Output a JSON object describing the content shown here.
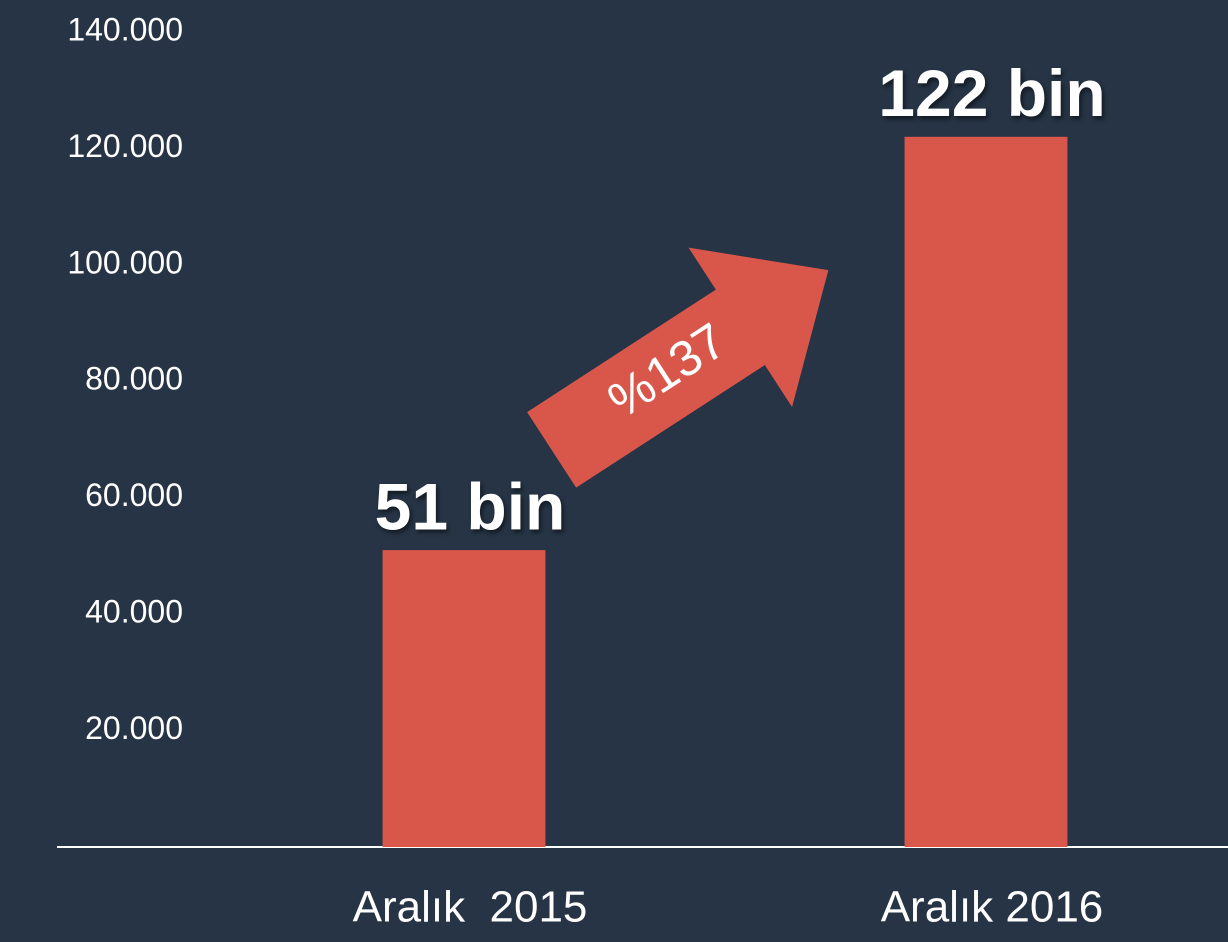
{
  "chart_data": {
    "type": "bar",
    "categories": [
      "Aralık  2015",
      "Aralık 2016"
    ],
    "values": [
      51000,
      122000
    ],
    "value_labels": [
      "51 bin",
      "122 bin"
    ],
    "color": "#d9574a",
    "ylim": [
      0,
      140000
    ],
    "yticks": [
      {
        "value": 20000,
        "label": "20.000"
      },
      {
        "value": 40000,
        "label": "40.000"
      },
      {
        "value": 60000,
        "label": "60.000"
      },
      {
        "value": 80000,
        "label": "80.000"
      },
      {
        "value": 100000,
        "label": "100.000"
      },
      {
        "value": 120000,
        "label": "120.000"
      },
      {
        "value": 140000,
        "label": "140.000"
      }
    ],
    "annotation": "%137"
  }
}
